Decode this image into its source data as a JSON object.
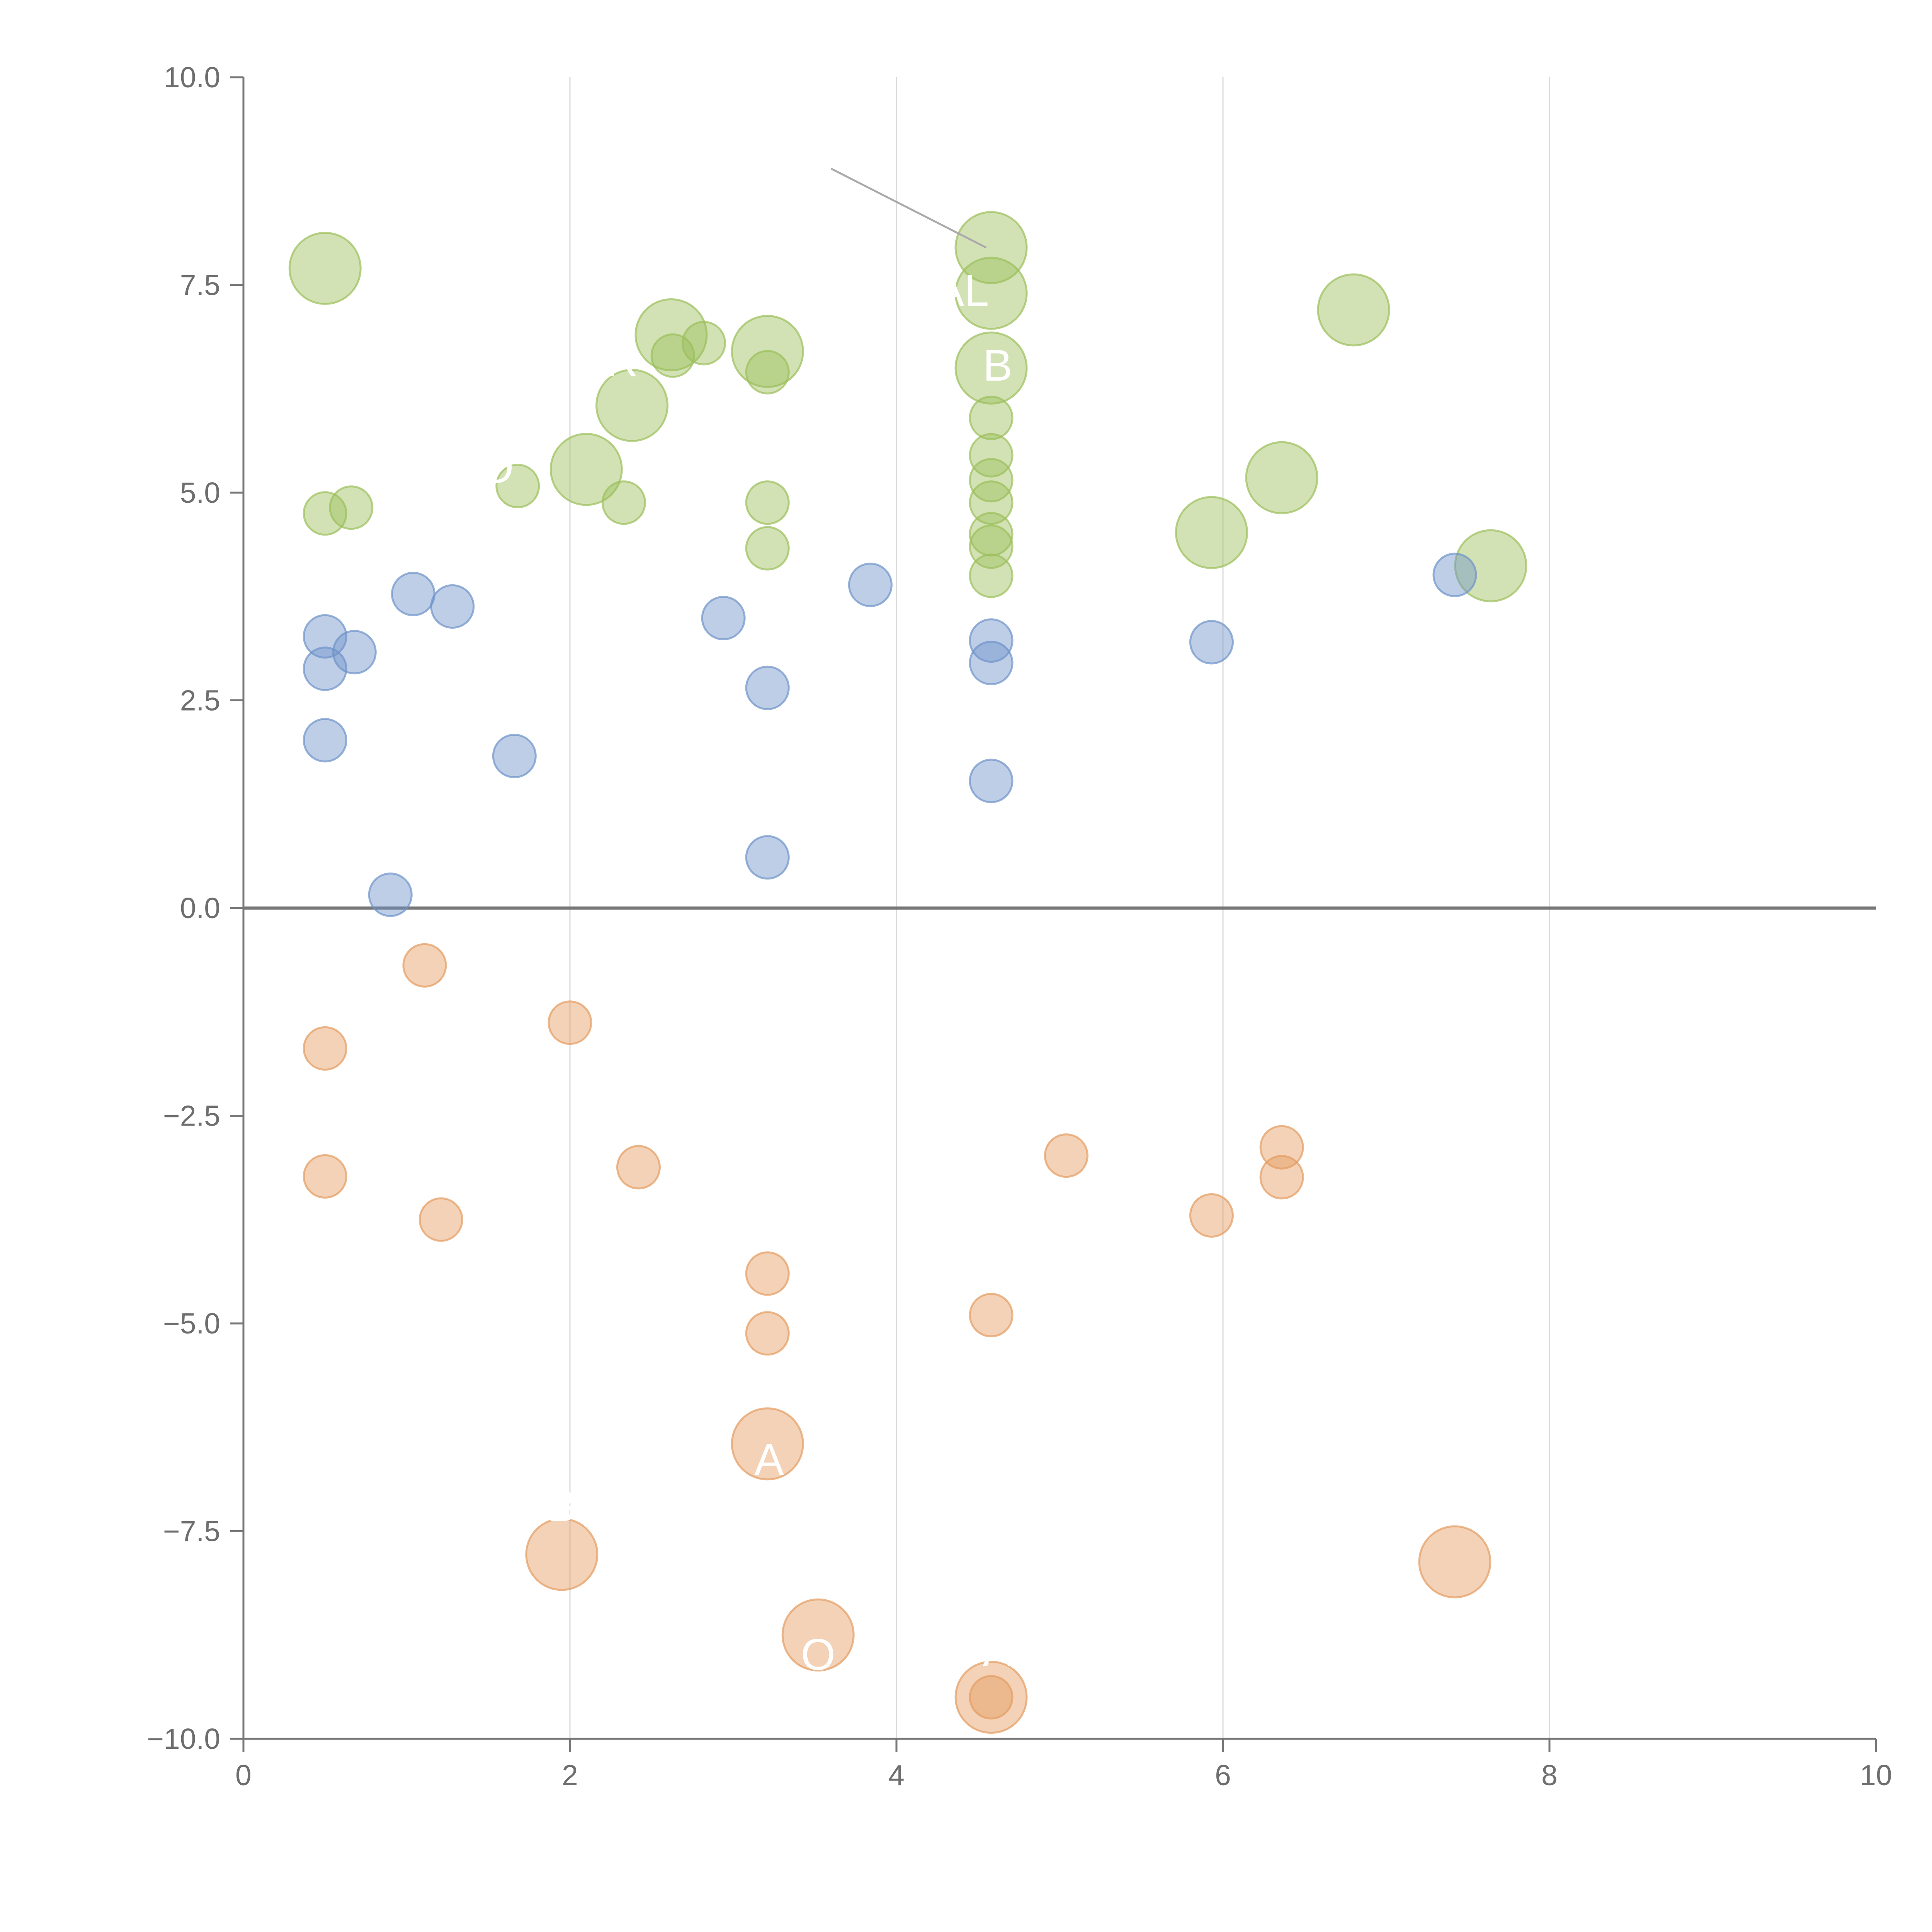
{
  "chart_data": {
    "type": "scatter",
    "title": "",
    "xlabel": "",
    "ylabel": "",
    "xlim": [
      0,
      10
    ],
    "ylim": [
      -10,
      10
    ],
    "x_ticks": [
      "0",
      "2",
      "4",
      "6",
      "8",
      "10"
    ],
    "y_ticks": [
      "10.0",
      "7.5",
      "5.0",
      "2.5",
      "0.0",
      "−2.5",
      "−5.0",
      "−7.5",
      "−10.0"
    ],
    "grid": "vertical",
    "zero_line": 0,
    "colors": {
      "green": "#9bbf5a",
      "blue": "#6e93c9",
      "orange": "#e49b5f",
      "axis": "#777777",
      "grid": "#d9d9d9"
    },
    "series": [
      {
        "name": "green",
        "color": "#9bbf5a",
        "points": [
          {
            "x": 0.5,
            "y": 7.7,
            "size": "large"
          },
          {
            "x": 2.62,
            "y": 6.9,
            "size": "large"
          },
          {
            "x": 2.63,
            "y": 6.65,
            "size": "small"
          },
          {
            "x": 2.82,
            "y": 6.8,
            "size": "small"
          },
          {
            "x": 2.38,
            "y": 6.05,
            "size": "large"
          },
          {
            "x": 3.21,
            "y": 6.7,
            "size": "large"
          },
          {
            "x": 3.21,
            "y": 6.45,
            "size": "small"
          },
          {
            "x": 4.58,
            "y": 7.95,
            "size": "large"
          },
          {
            "x": 4.58,
            "y": 7.4,
            "size": "large"
          },
          {
            "x": 4.58,
            "y": 6.5,
            "size": "large"
          },
          {
            "x": 4.58,
            "y": 5.9,
            "size": "small"
          },
          {
            "x": 4.58,
            "y": 5.45,
            "size": "small"
          },
          {
            "x": 4.58,
            "y": 5.15,
            "size": "small"
          },
          {
            "x": 4.58,
            "y": 4.88,
            "size": "small"
          },
          {
            "x": 4.58,
            "y": 4.5,
            "size": "small"
          },
          {
            "x": 4.58,
            "y": 4.35,
            "size": "small"
          },
          {
            "x": 4.58,
            "y": 4.0,
            "size": "small"
          },
          {
            "x": 6.8,
            "y": 7.2,
            "size": "large"
          },
          {
            "x": 2.1,
            "y": 5.28,
            "size": "large"
          },
          {
            "x": 1.68,
            "y": 5.08,
            "size": "small"
          },
          {
            "x": 2.33,
            "y": 4.88,
            "size": "small"
          },
          {
            "x": 0.5,
            "y": 4.75,
            "size": "small"
          },
          {
            "x": 0.66,
            "y": 4.82,
            "size": "small"
          },
          {
            "x": 3.21,
            "y": 4.88,
            "size": "small"
          },
          {
            "x": 3.21,
            "y": 4.33,
            "size": "small"
          },
          {
            "x": 5.93,
            "y": 4.52,
            "size": "large"
          },
          {
            "x": 6.36,
            "y": 5.18,
            "size": "large"
          },
          {
            "x": 7.64,
            "y": 4.12,
            "size": "large"
          }
        ]
      },
      {
        "name": "blue",
        "color": "#6e93c9",
        "points": [
          {
            "x": 1.04,
            "y": 3.78,
            "size": "small"
          },
          {
            "x": 1.28,
            "y": 3.63,
            "size": "small"
          },
          {
            "x": 0.5,
            "y": 3.27,
            "size": "small"
          },
          {
            "x": 0.68,
            "y": 3.08,
            "size": "small"
          },
          {
            "x": 0.5,
            "y": 2.88,
            "size": "small"
          },
          {
            "x": 0.5,
            "y": 2.02,
            "size": "small"
          },
          {
            "x": 1.66,
            "y": 1.83,
            "size": "small"
          },
          {
            "x": 0.9,
            "y": 0.16,
            "size": "small"
          },
          {
            "x": 2.94,
            "y": 3.49,
            "size": "small"
          },
          {
            "x": 3.84,
            "y": 3.89,
            "size": "small"
          },
          {
            "x": 3.21,
            "y": 2.65,
            "size": "small"
          },
          {
            "x": 3.21,
            "y": 0.61,
            "size": "small"
          },
          {
            "x": 4.58,
            "y": 3.22,
            "size": "small"
          },
          {
            "x": 4.58,
            "y": 2.95,
            "size": "small"
          },
          {
            "x": 4.58,
            "y": 1.53,
            "size": "small"
          },
          {
            "x": 5.93,
            "y": 3.2,
            "size": "small"
          },
          {
            "x": 7.42,
            "y": 4.01,
            "size": "small"
          }
        ]
      },
      {
        "name": "orange",
        "color": "#e49b5f",
        "points": [
          {
            "x": 1.11,
            "y": -0.69,
            "size": "small"
          },
          {
            "x": 2.0,
            "y": -1.38,
            "size": "small"
          },
          {
            "x": 0.5,
            "y": -1.69,
            "size": "small"
          },
          {
            "x": 0.5,
            "y": -3.23,
            "size": "small"
          },
          {
            "x": 1.21,
            "y": -3.75,
            "size": "small"
          },
          {
            "x": 2.42,
            "y": -3.12,
            "size": "small"
          },
          {
            "x": 3.21,
            "y": -4.4,
            "size": "small"
          },
          {
            "x": 3.21,
            "y": -5.12,
            "size": "small"
          },
          {
            "x": 4.58,
            "y": -4.9,
            "size": "small"
          },
          {
            "x": 5.04,
            "y": -2.98,
            "size": "small"
          },
          {
            "x": 5.93,
            "y": -3.7,
            "size": "small"
          },
          {
            "x": 6.36,
            "y": -2.88,
            "size": "small"
          },
          {
            "x": 6.36,
            "y": -3.24,
            "size": "small"
          },
          {
            "x": 3.21,
            "y": -6.45,
            "size": "large"
          },
          {
            "x": 1.95,
            "y": -7.78,
            "size": "large"
          },
          {
            "x": 3.52,
            "y": -8.75,
            "size": "large"
          },
          {
            "x": 4.58,
            "y": -9.5,
            "size": "large"
          },
          {
            "x": 4.58,
            "y": -9.5,
            "size": "small"
          },
          {
            "x": 7.42,
            "y": -7.87,
            "size": "large"
          }
        ]
      }
    ],
    "annotations": [
      {
        "text": "AL",
        "x": 4.4,
        "y": 7.25,
        "tx": 4.4,
        "ty": 7.25,
        "lx1": 4.4,
        "ly1": 7.25,
        "lx2": 4.4,
        "ly2": 7.25
      },
      {
        "text": "B",
        "x": 4.62,
        "y": 6.35
      },
      {
        "text": "R",
        "x": 2.32,
        "y": 6.4
      },
      {
        "text": "O",
        "x": 1.55,
        "y": 5.12
      },
      {
        "text": "A",
        "x": 3.22,
        "y": -6.82
      },
      {
        "text": "B",
        "x": 1.95,
        "y": -7.38
      },
      {
        "text": "O",
        "x": 3.52,
        "y": -9.17
      },
      {
        "text": "A",
        "x": 4.62,
        "y": -9.12
      }
    ]
  }
}
